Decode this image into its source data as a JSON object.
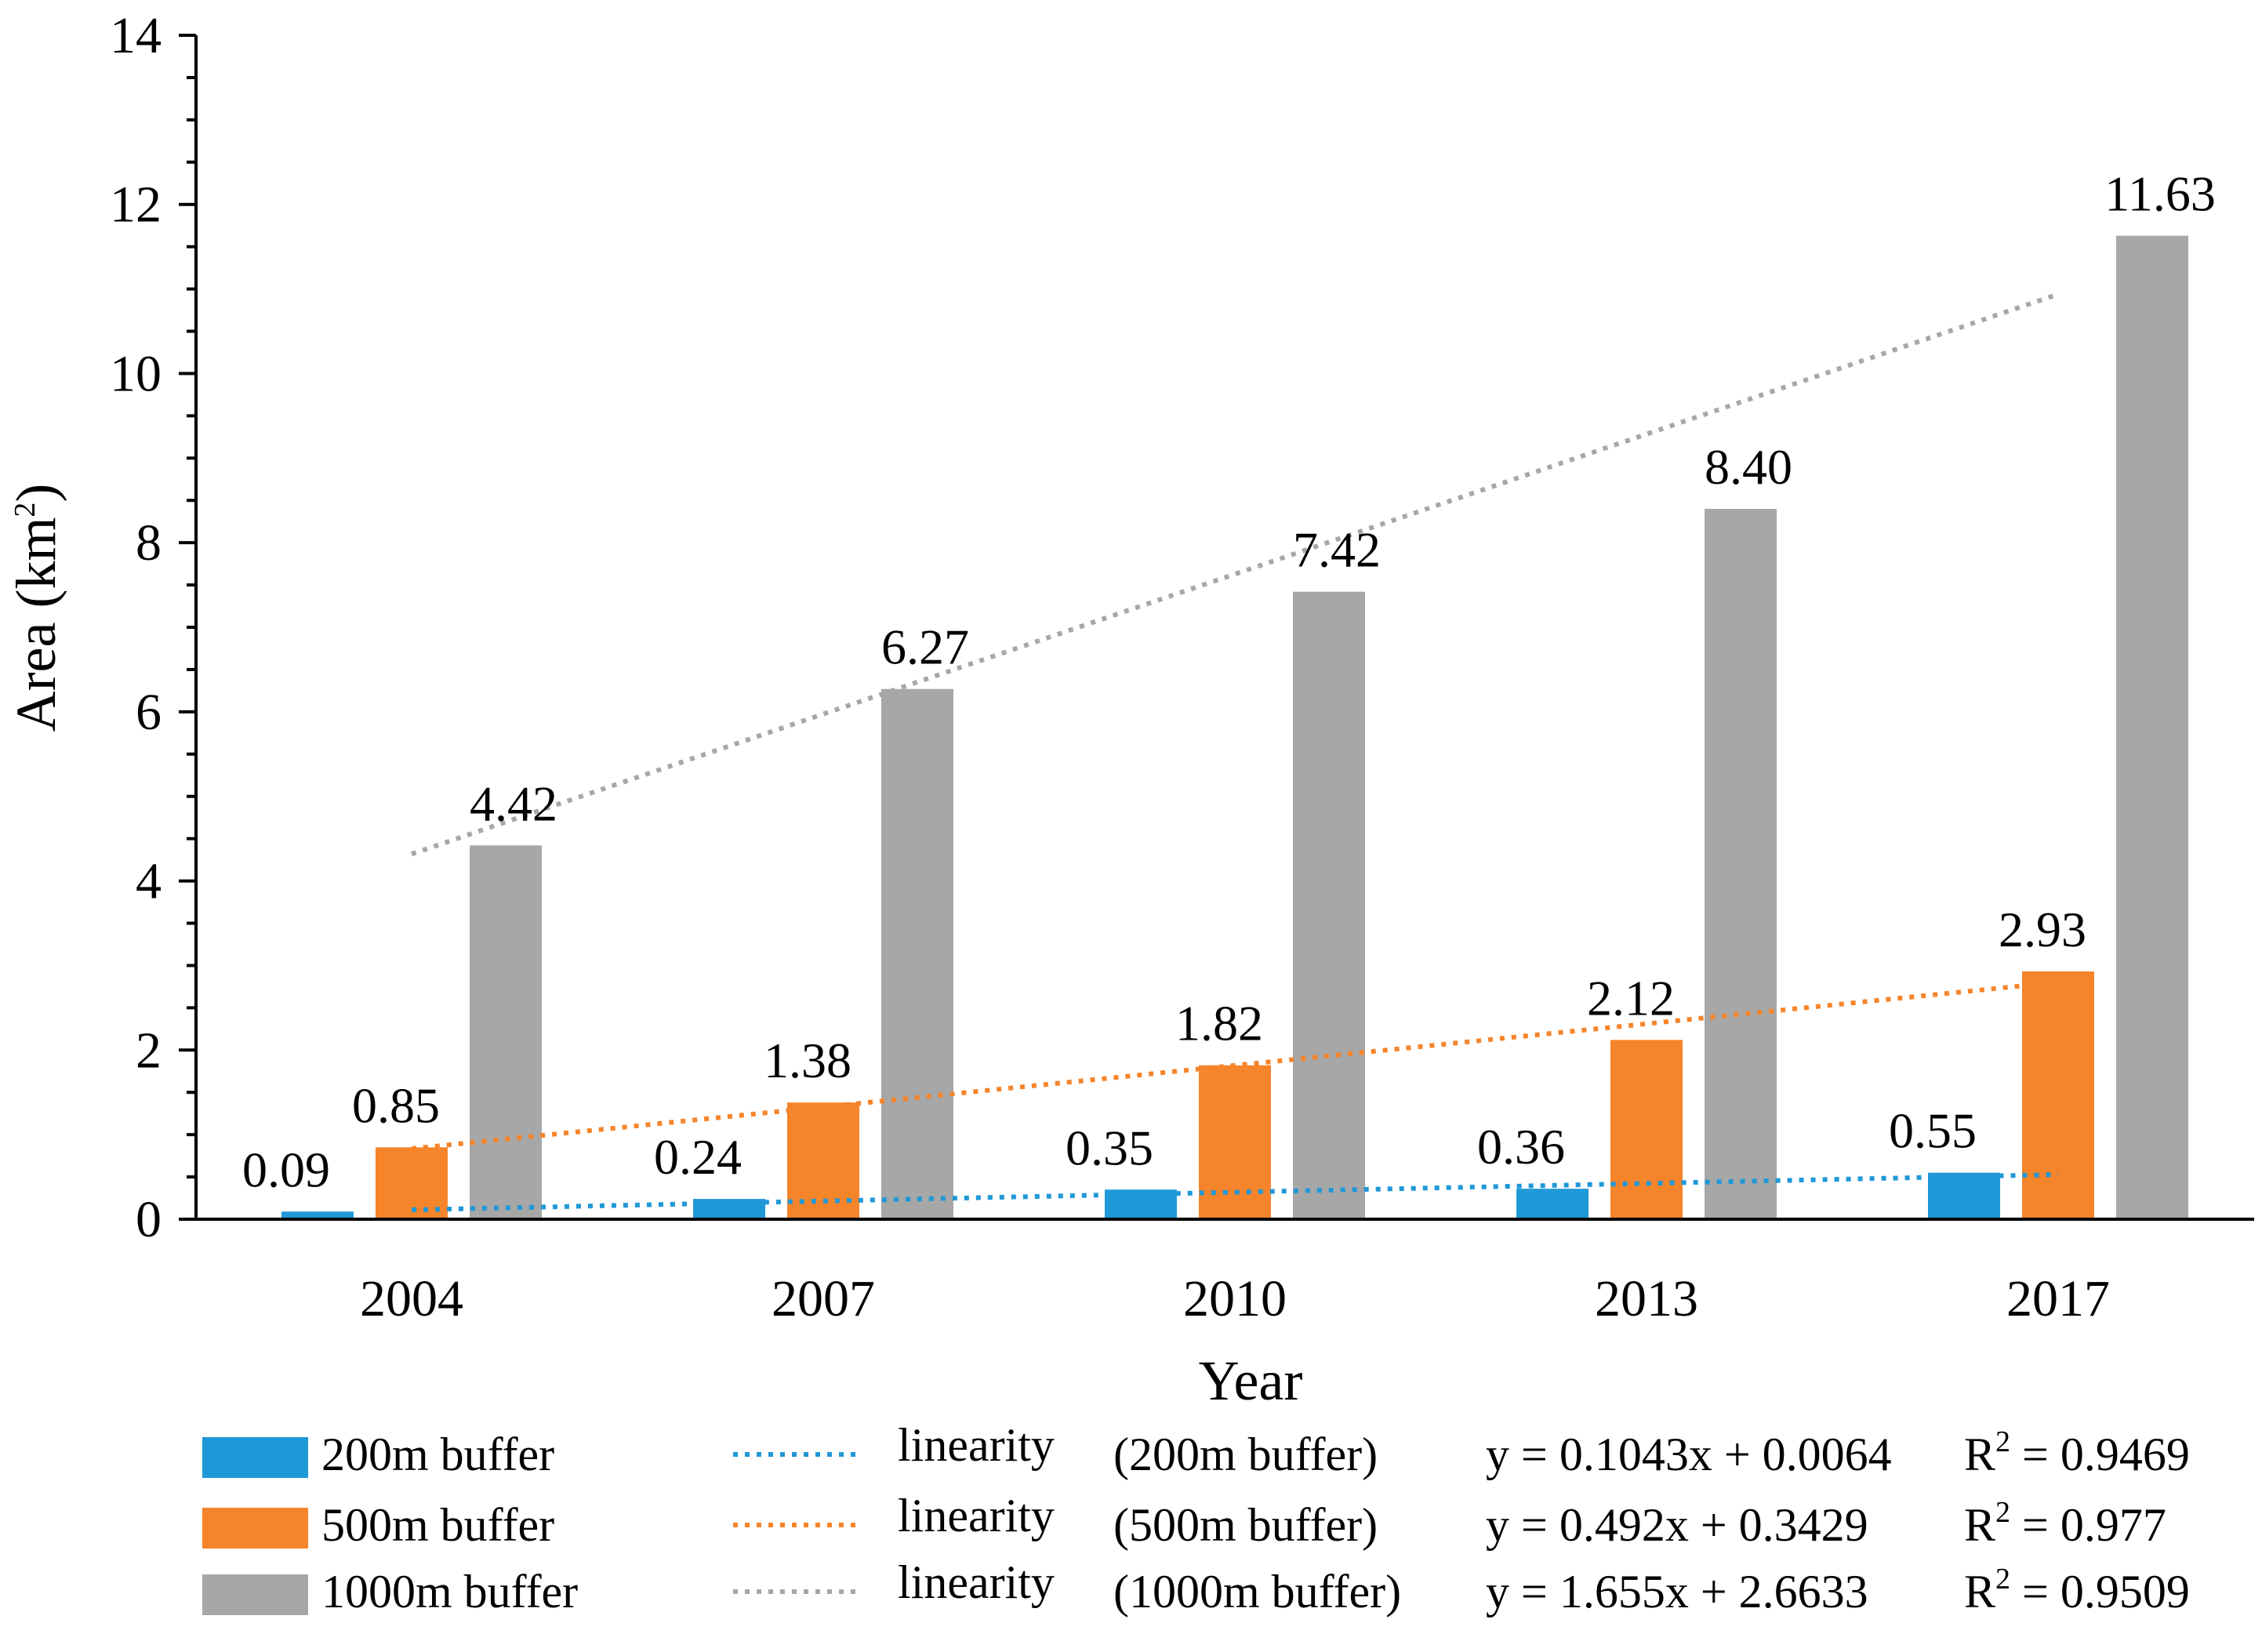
{
  "chart_data": {
    "type": "bar",
    "title": "",
    "xlabel": "Year",
    "ylabel": {
      "base": "Area (km",
      "sup": "2",
      "end": ")"
    },
    "categories": [
      "2004",
      "2007",
      "2010",
      "2013",
      "2017"
    ],
    "ylim": [
      0,
      14
    ],
    "yticks": [
      0,
      2,
      4,
      6,
      8,
      10,
      12,
      14
    ],
    "series": [
      {
        "name": "200m buffer",
        "color": "#1f98d8",
        "values": [
          0.09,
          0.24,
          0.35,
          0.36,
          0.55
        ],
        "labels": [
          "0.09",
          "0.24",
          "0.35",
          "0.36",
          "0.55"
        ]
      },
      {
        "name": "500m buffer",
        "color": "#f6842a",
        "values": [
          0.85,
          1.38,
          1.82,
          2.12,
          2.93
        ],
        "labels": [
          "0.85",
          "1.38",
          "1.82",
          "2.12",
          "2.93"
        ]
      },
      {
        "name": "1000m buffer",
        "color": "#a7a7a7",
        "values": [
          4.42,
          6.27,
          7.42,
          8.4,
          11.63
        ],
        "labels": [
          "4.42",
          "6.27",
          "7.42",
          "8.40",
          "11.63"
        ]
      }
    ],
    "trendlines": [
      {
        "series": "200m buffer",
        "color": "#1f98d8",
        "slope": 0.1043,
        "intercept": 0.0064,
        "label": "linearity",
        "name": "(200m buffer)",
        "equation": "y = 0.1043x + 0.0064",
        "r2_prefix": "R",
        "r2_sup": "2",
        "r2_value": " = 0.9469"
      },
      {
        "series": "500m buffer",
        "color": "#f6842a",
        "slope": 0.492,
        "intercept": 0.3429,
        "label": "linearity",
        "name": "(500m buffer)",
        "equation": "y = 0.492x + 0.3429",
        "r2_prefix": "R",
        "r2_sup": "2",
        "r2_value": " = 0.977"
      },
      {
        "series": "1000m buffer",
        "color": "#a7a7a7",
        "slope": 1.655,
        "intercept": 2.6633,
        "label": "linearity",
        "name": "(1000m buffer)",
        "equation": "y = 1.655x + 2.6633",
        "r2_prefix": "R",
        "r2_sup": "2",
        "r2_value": " = 0.9509"
      }
    ],
    "grid": false,
    "legend_position": "bottom"
  }
}
